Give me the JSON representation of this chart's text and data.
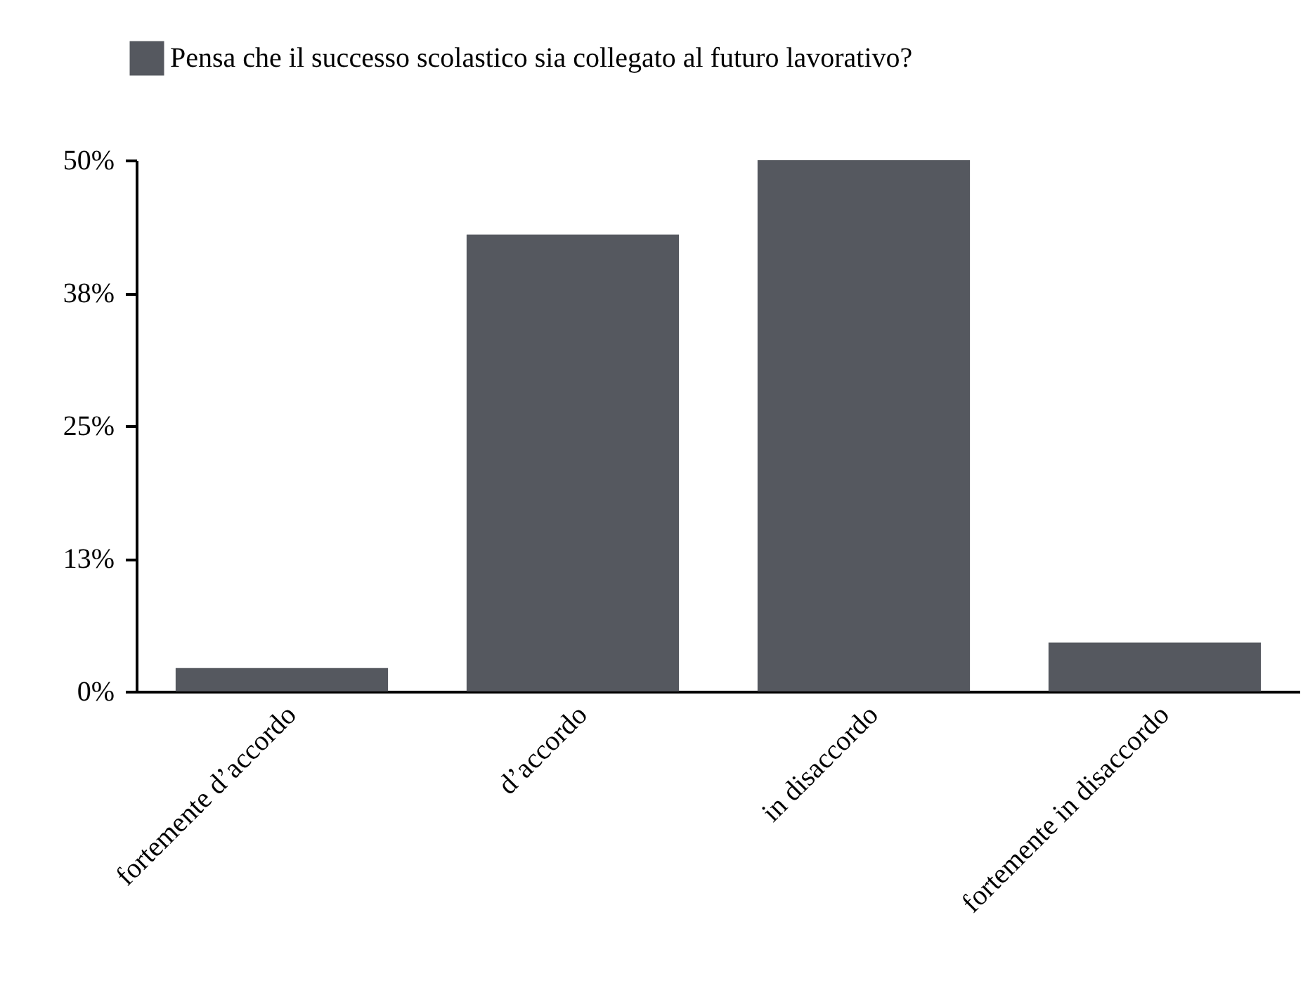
{
  "chart_data": {
    "type": "bar",
    "categories": [
      "fortemente d’accordo",
      "d’accordo",
      "in disaccordo",
      "fortemente in disaccordo"
    ],
    "series": [
      {
        "name": "Pensa che il successo scolastico sia collegato al futuro lavorativo?",
        "color": "#55585f",
        "values": [
          2.2,
          43,
          50,
          4.6
        ]
      }
    ],
    "ylim": [
      0,
      50
    ],
    "yticks": [
      {
        "value": 0,
        "label": "0%"
      },
      {
        "value": 12.5,
        "label": "13%"
      },
      {
        "value": 25,
        "label": "25%"
      },
      {
        "value": 37.5,
        "label": "38%"
      },
      {
        "value": 50,
        "label": "50%"
      }
    ],
    "grid": false,
    "legend": "top left"
  }
}
